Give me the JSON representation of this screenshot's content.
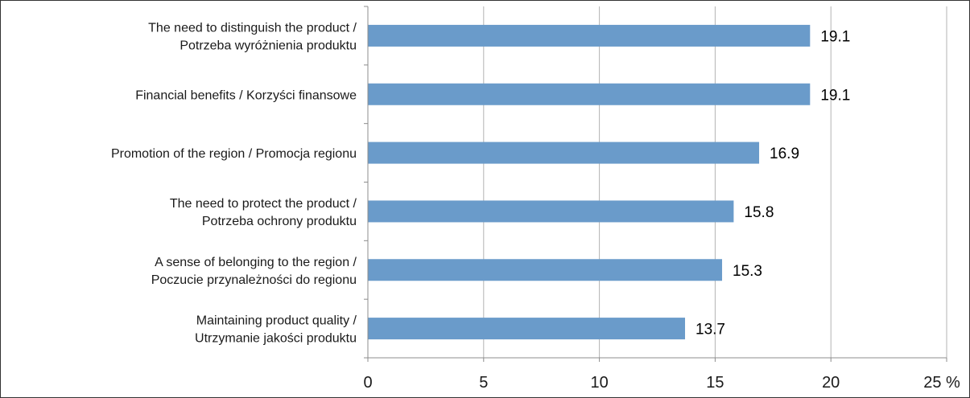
{
  "chart_data": {
    "type": "bar",
    "orientation": "horizontal",
    "categories": [
      [
        "The need to distinguish the product /",
        "Potrzeba wyróżnienia produktu"
      ],
      [
        "Financial benefits / Korzyści finansowe"
      ],
      [
        "Promotion of the region / Promocja regionu"
      ],
      [
        "The need to protect the product /",
        "Potrzeba ochrony produktu"
      ],
      [
        "A sense of belonging to the region /",
        "Poczucie przynależności do regionu"
      ],
      [
        "Maintaining product quality /",
        "Utrzymanie jakości produktu"
      ]
    ],
    "values": [
      19.1,
      19.1,
      16.9,
      15.8,
      15.3,
      13.7
    ],
    "value_labels": [
      "19.1",
      "19.1",
      "16.9",
      "15.8",
      "15.3",
      "13.7"
    ],
    "title": "",
    "xlabel": "",
    "ylabel": "",
    "xlim": [
      0,
      25
    ],
    "x_ticks": [
      0,
      5,
      10,
      15,
      20,
      25
    ],
    "x_tick_labels": [
      "0",
      "5",
      "10",
      "15",
      "20",
      "25 %"
    ],
    "grid": "vertical",
    "legend": "none",
    "colors": {
      "bar": "#6a9bca",
      "gridline": "#b3b3b3",
      "axis": "#8c8c8c",
      "frame": "#333333"
    }
  }
}
